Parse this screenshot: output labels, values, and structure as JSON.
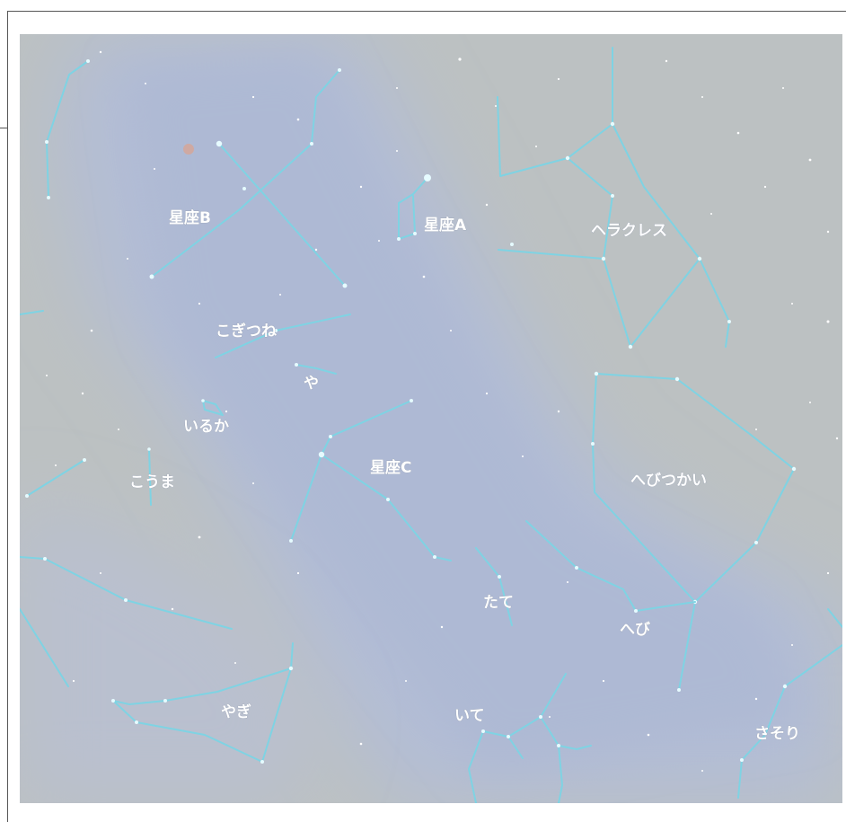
{
  "constellations": [
    {
      "id": "b",
      "label": "星座B"
    },
    {
      "id": "a",
      "label": "星座A"
    },
    {
      "id": "hercules",
      "label": "ヘラクレス"
    },
    {
      "id": "vulpecula",
      "label": "こぎつね"
    },
    {
      "id": "sagitta",
      "label": "や"
    },
    {
      "id": "delphinus",
      "label": "いるか"
    },
    {
      "id": "equuleus",
      "label": "こうま"
    },
    {
      "id": "c",
      "label": "星座C"
    },
    {
      "id": "ophiuchus",
      "label": "へびつかい"
    },
    {
      "id": "scutum",
      "label": "たて"
    },
    {
      "id": "serpens",
      "label": "へび"
    },
    {
      "id": "capricornus",
      "label": "やぎ"
    },
    {
      "id": "sagittarius",
      "label": "いて"
    },
    {
      "id": "scorpius",
      "label": "さそり"
    }
  ],
  "colors": {
    "sky_dark": "#bcc1c2",
    "milky_way": "#b4bfd6",
    "constellation_line": "#7fd3e3",
    "label": "#ffffff",
    "frame": "#555555"
  }
}
